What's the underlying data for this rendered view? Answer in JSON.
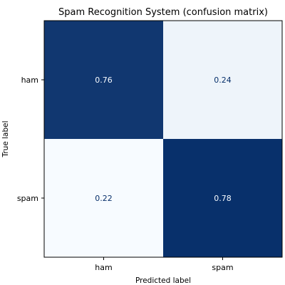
{
  "chart_data": {
    "type": "heatmap",
    "title": "Spam Recognition System (confusion matrix)",
    "xlabel": "Predicted label",
    "ylabel": "True label",
    "x_categories": [
      "ham",
      "spam"
    ],
    "y_categories": [
      "ham",
      "spam"
    ],
    "values": [
      [
        0.76,
        0.24
      ],
      [
        0.22,
        0.78
      ]
    ],
    "value_labels": [
      [
        "0.76",
        "0.24"
      ],
      [
        "0.22",
        "0.78"
      ]
    ],
    "colormap": "Blues",
    "colors": {
      "high": "#08306b",
      "low": "#f7fbff",
      "text_on_dark": "#f7fbff",
      "text_on_light": "#08306b"
    },
    "grid": false,
    "colorbar": false
  }
}
